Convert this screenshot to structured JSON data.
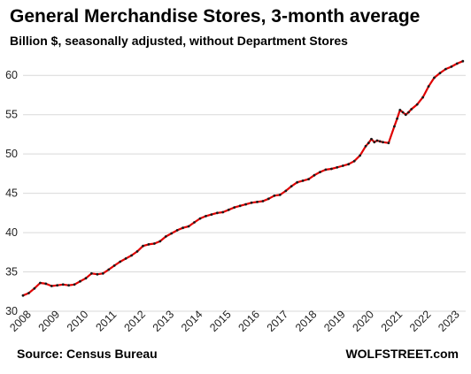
{
  "header": {
    "title": "General Merchandise Stores, 3-month average",
    "subtitle": "Billion $, seasonally adjusted, without Department Stores"
  },
  "footer": {
    "source": "Source: Census Bureau",
    "brand": "WOLFSTREET.com"
  },
  "colors": {
    "line": "#e00000",
    "markers": "#1a1a1a",
    "grid": "#d9d9d9"
  },
  "chart_data": {
    "type": "line",
    "title": "General Merchandise Stores, 3-month average",
    "subtitle": "Billion $, seasonally adjusted, without Department Stores",
    "xlabel": "",
    "ylabel": "",
    "xlim": [
      2008,
      2023.5
    ],
    "ylim": [
      30,
      62.5
    ],
    "grid": "horizontal",
    "x_ticks": [
      "2008",
      "2009",
      "2010",
      "2011",
      "2012",
      "2013",
      "2014",
      "2015",
      "2016",
      "2017",
      "2018",
      "2019",
      "2020",
      "2021",
      "2022",
      "2023"
    ],
    "y_ticks": [
      "30",
      "35",
      "40",
      "45",
      "50",
      "55",
      "60"
    ],
    "series": [
      {
        "x": [
          2008.0,
          2008.2,
          2008.4,
          2008.6,
          2008.8,
          2009.0,
          2009.2,
          2009.4,
          2009.6,
          2009.8,
          2010.0,
          2010.2,
          2010.4,
          2010.6,
          2010.8,
          2011.0,
          2011.2,
          2011.4,
          2011.6,
          2011.8,
          2012.0,
          2012.2,
          2012.4,
          2012.6,
          2012.8,
          2013.0,
          2013.2,
          2013.4,
          2013.6,
          2013.8,
          2014.0,
          2014.2,
          2014.4,
          2014.6,
          2014.8,
          2015.0,
          2015.2,
          2015.4,
          2015.6,
          2015.8,
          2016.0,
          2016.2,
          2016.4,
          2016.6,
          2016.8,
          2017.0,
          2017.2,
          2017.4,
          2017.6,
          2017.8,
          2018.0,
          2018.2,
          2018.4,
          2018.6,
          2018.8,
          2019.0,
          2019.2,
          2019.4,
          2019.6,
          2019.8,
          2020.0,
          2020.1,
          2020.2,
          2020.3,
          2020.4,
          2020.5,
          2020.6,
          2020.8,
          2021.0,
          2021.1,
          2021.2,
          2021.3,
          2021.4,
          2021.5,
          2021.6,
          2021.8,
          2022.0,
          2022.2,
          2022.4,
          2022.6,
          2022.8,
          2023.0,
          2023.2,
          2023.4
        ],
        "values": [
          32.0,
          32.3,
          32.9,
          33.6,
          33.5,
          33.2,
          33.3,
          33.4,
          33.3,
          33.4,
          33.8,
          34.2,
          34.8,
          34.7,
          34.8,
          35.3,
          35.8,
          36.3,
          36.7,
          37.1,
          37.6,
          38.3,
          38.5,
          38.6,
          38.9,
          39.5,
          39.9,
          40.3,
          40.6,
          40.8,
          41.3,
          41.8,
          42.1,
          42.3,
          42.5,
          42.6,
          42.9,
          43.2,
          43.4,
          43.6,
          43.8,
          43.9,
          44.0,
          44.3,
          44.7,
          44.8,
          45.3,
          45.9,
          46.4,
          46.6,
          46.8,
          47.3,
          47.7,
          48.0,
          48.1,
          48.3,
          48.5,
          48.7,
          49.1,
          49.8,
          51.0,
          51.4,
          51.9,
          51.5,
          51.7,
          51.6,
          51.5,
          51.4,
          53.5,
          54.5,
          55.6,
          55.3,
          55.0,
          55.3,
          55.7,
          56.3,
          57.2,
          58.6,
          59.7,
          60.3,
          60.8,
          61.1,
          61.5,
          61.8
        ]
      }
    ]
  }
}
